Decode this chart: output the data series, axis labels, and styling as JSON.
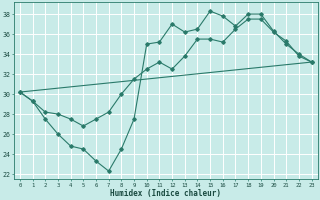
{
  "xlabel": "Humidex (Indice chaleur)",
  "bg_color": "#c8ebe8",
  "grid_color": "#ffffff",
  "line_color": "#2a7a6a",
  "xlim": [
    -0.5,
    23.5
  ],
  "ylim": [
    21.5,
    39.2
  ],
  "xticks": [
    0,
    1,
    2,
    3,
    4,
    5,
    6,
    7,
    8,
    9,
    10,
    11,
    12,
    13,
    14,
    15,
    16,
    17,
    18,
    19,
    20,
    21,
    22,
    23
  ],
  "yticks": [
    22,
    24,
    26,
    28,
    30,
    32,
    34,
    36,
    38
  ],
  "line1_x": [
    0,
    1,
    2,
    3,
    4,
    5,
    6,
    7,
    8,
    9,
    10,
    11,
    12,
    13,
    14,
    15,
    16,
    17,
    18,
    19,
    20,
    21,
    22,
    23
  ],
  "line1_y": [
    30.2,
    29.3,
    27.5,
    26.0,
    24.8,
    24.5,
    23.3,
    22.3,
    24.5,
    27.5,
    35.0,
    35.2,
    37.0,
    36.2,
    36.5,
    38.3,
    37.8,
    36.8,
    38.0,
    38.0,
    36.3,
    35.0,
    34.0,
    33.2
  ],
  "line2_x": [
    0,
    1,
    2,
    3,
    4,
    5,
    6,
    7,
    8,
    9,
    10,
    11,
    12,
    13,
    14,
    15,
    16,
    17,
    18,
    19,
    20,
    21,
    22,
    23
  ],
  "line2_y": [
    30.2,
    29.3,
    28.2,
    28.0,
    27.5,
    26.8,
    27.5,
    28.2,
    30.0,
    31.5,
    32.5,
    33.2,
    32.5,
    33.8,
    35.5,
    35.5,
    35.2,
    36.5,
    37.5,
    37.5,
    36.2,
    35.3,
    33.8,
    33.2
  ],
  "line3_x": [
    0,
    23
  ],
  "line3_y": [
    30.2,
    33.2
  ]
}
